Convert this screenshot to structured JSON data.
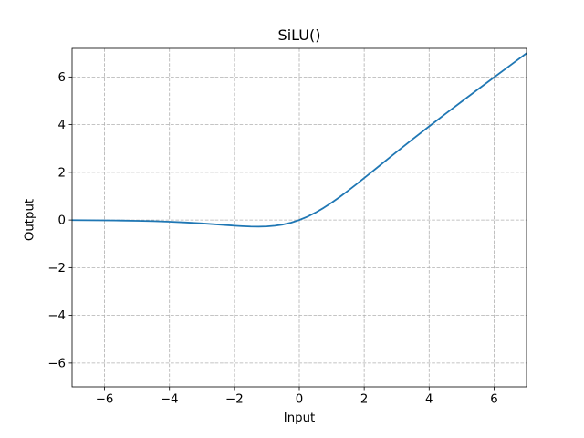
{
  "chart_data": {
    "type": "line",
    "title": "SiLU()",
    "xlabel": "Input",
    "ylabel": "Output",
    "xlim": [
      -7,
      7
    ],
    "ylim": [
      -7,
      7.2
    ],
    "grid": true,
    "grid_color": "#b0b0b0",
    "grid_style": "dashed",
    "axes_color": "#000000",
    "background_color": "#ffffff",
    "legend": "none",
    "xticks": {
      "values": [
        -6,
        -4,
        -2,
        0,
        2,
        4,
        6
      ],
      "labels": [
        "−6",
        "−4",
        "−2",
        "0",
        "2",
        "4",
        "6"
      ]
    },
    "yticks": {
      "values": [
        -6,
        -4,
        -2,
        0,
        2,
        4,
        6
      ],
      "labels": [
        "−6",
        "−4",
        "−2",
        "0",
        "2",
        "4",
        "6"
      ]
    },
    "series": [
      {
        "name": "SiLU",
        "color": "#1f77b4",
        "line_width": 1.8,
        "x": [
          -7.0,
          -6.5,
          -6.0,
          -5.5,
          -5.0,
          -4.5,
          -4.0,
          -3.5,
          -3.0,
          -2.75,
          -2.5,
          -2.25,
          -2.0,
          -1.75,
          -1.5,
          -1.25,
          -1.0,
          -0.75,
          -0.5,
          -0.25,
          0.0,
          0.25,
          0.5,
          0.75,
          1.0,
          1.25,
          1.5,
          1.75,
          2.0,
          2.25,
          2.5,
          2.75,
          3.0,
          3.5,
          4.0,
          4.5,
          5.0,
          5.5,
          6.0,
          6.5,
          7.0
        ],
        "y": [
          -0.0064,
          -0.0098,
          -0.0148,
          -0.0224,
          -0.0335,
          -0.0494,
          -0.0719,
          -0.1026,
          -0.1423,
          -0.1652,
          -0.1896,
          -0.2145,
          -0.2384,
          -0.2591,
          -0.2736,
          -0.2784,
          -0.2689,
          -0.2406,
          -0.1888,
          -0.1095,
          0.0,
          0.1405,
          0.3112,
          0.5094,
          0.7311,
          0.9716,
          1.2264,
          1.4909,
          1.7616,
          2.0355,
          2.3104,
          2.5848,
          2.8577,
          3.3974,
          3.9281,
          4.4506,
          4.9665,
          5.4776,
          5.9852,
          6.4902,
          6.9936
        ]
      }
    ]
  }
}
